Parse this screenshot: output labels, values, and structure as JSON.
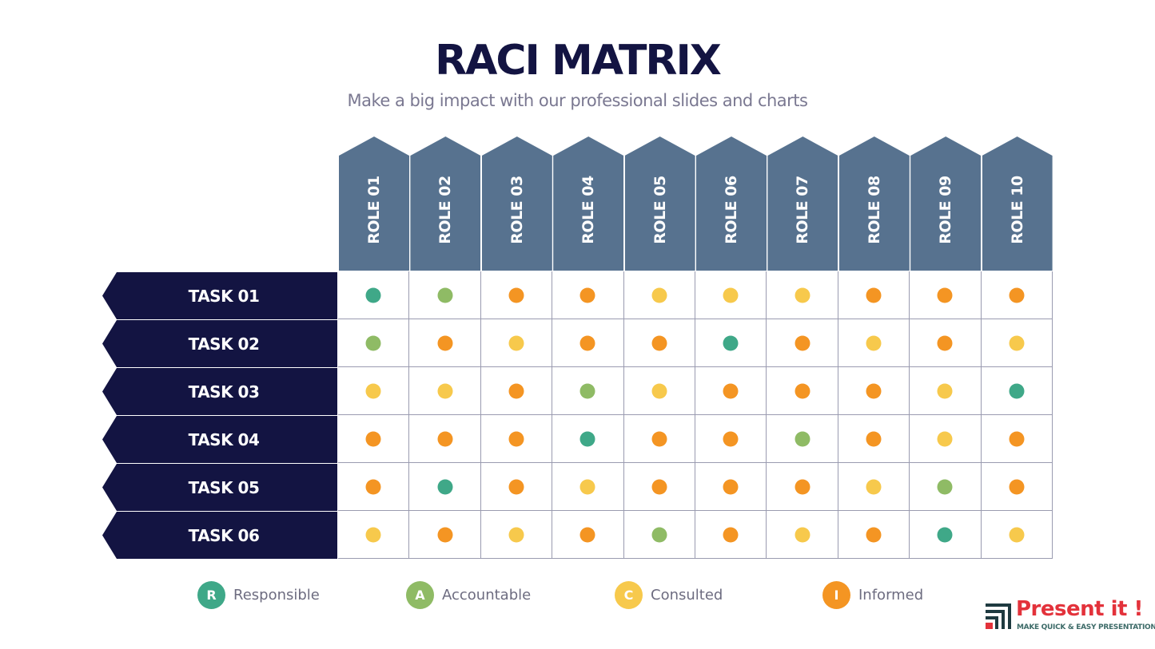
{
  "title": "RACI MATRIX",
  "subtitle": "Make a big impact with our professional slides and charts",
  "roles": [
    "ROLE 01",
    "ROLE 02",
    "ROLE 03",
    "ROLE 04",
    "ROLE 05",
    "ROLE 06",
    "ROLE 07",
    "ROLE 08",
    "ROLE 09",
    "ROLE 10"
  ],
  "tasks": [
    {
      "label": "TASK 01",
      "assignments": [
        "R",
        "A",
        "I",
        "I",
        "C",
        "C",
        "C",
        "I",
        "I",
        "I"
      ]
    },
    {
      "label": "TASK 02",
      "assignments": [
        "A",
        "I",
        "C",
        "I",
        "I",
        "R",
        "I",
        "C",
        "I",
        "C"
      ]
    },
    {
      "label": "TASK 03",
      "assignments": [
        "C",
        "C",
        "I",
        "A",
        "C",
        "I",
        "I",
        "I",
        "C",
        "R"
      ]
    },
    {
      "label": "TASK 04",
      "assignments": [
        "I",
        "I",
        "I",
        "R",
        "I",
        "I",
        "A",
        "I",
        "C",
        "I"
      ]
    },
    {
      "label": "TASK 05",
      "assignments": [
        "I",
        "R",
        "I",
        "C",
        "I",
        "I",
        "I",
        "C",
        "A",
        "I"
      ]
    },
    {
      "label": "TASK 06",
      "assignments": [
        "C",
        "I",
        "C",
        "I",
        "A",
        "I",
        "C",
        "I",
        "R",
        "C"
      ]
    }
  ],
  "legend": [
    {
      "letter": "R",
      "label": "Responsible",
      "color": "#3fa888"
    },
    {
      "letter": "A",
      "label": "Accountable",
      "color": "#8fbb65"
    },
    {
      "letter": "C",
      "label": "Consulted",
      "color": "#f7c94c"
    },
    {
      "letter": "I",
      "label": "Informed",
      "color": "#f49523"
    }
  ],
  "colors": {
    "header": "#57728f",
    "task": "#131442",
    "grid": "#9a9bb0"
  },
  "logo": {
    "name": "Present it !",
    "tagline": "MAKE QUICK & EASY PRESENTATIONS"
  }
}
